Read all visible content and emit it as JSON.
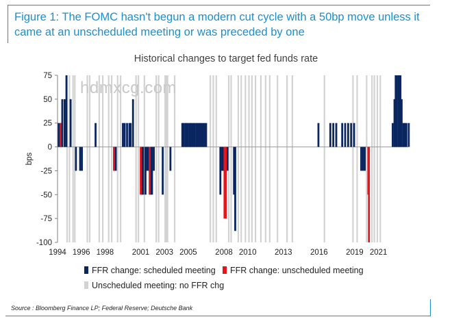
{
  "figure_title": "Figure 1: The FOMC hasn't begun a modern cut cycle with a 50bp move unless it came at an unscheduled meeting or was preceded by one",
  "watermark": "hdmxcg.com",
  "source": "Source : Bloomberg Finance LP; Federal Reserve; Deutsche Bank",
  "colors": {
    "scheduled": "#0a2660",
    "unscheduled": "#e8141b",
    "nochg": "#d3d3d3",
    "accent": "#1a8fd0"
  },
  "chart_data": {
    "type": "bar",
    "title": "Historical changes to target fed funds rate",
    "ylabel": "bps",
    "xlabel": "",
    "ylim": [
      -100,
      75
    ],
    "yticks": [
      75,
      50,
      25,
      0,
      -25,
      -50,
      -75,
      -100
    ],
    "xlim": [
      1994,
      2023.5
    ],
    "xticks": [
      1994,
      1996,
      1998,
      2001,
      2003,
      2005,
      2008,
      2010,
      2013,
      2016,
      2019,
      2021
    ],
    "legend": [
      {
        "key": "scheduled",
        "label": "FFR change: scheduled meeting"
      },
      {
        "key": "unscheduled",
        "label": "FFR change: unscheduled meeting"
      },
      {
        "key": "nochg",
        "label": "Unscheduled meeting: no FFR chg"
      }
    ],
    "series": [
      {
        "name": "FFR change: scheduled meeting",
        "key": "scheduled",
        "points": [
          [
            1994.1,
            25
          ],
          [
            1994.3,
            25
          ],
          [
            1994.4,
            50
          ],
          [
            1994.6,
            50
          ],
          [
            1994.75,
            75
          ],
          [
            1995.1,
            50
          ],
          [
            1995.55,
            -25
          ],
          [
            1995.9,
            -25
          ],
          [
            1996.05,
            -25
          ],
          [
            1997.2,
            25
          ],
          [
            1998.8,
            -25
          ],
          [
            1998.9,
            -25
          ],
          [
            1999.5,
            25
          ],
          [
            1999.65,
            25
          ],
          [
            1999.85,
            25
          ],
          [
            2000.05,
            25
          ],
          [
            2000.15,
            25
          ],
          [
            2000.35,
            50
          ],
          [
            2001.1,
            -50
          ],
          [
            2001.2,
            -50
          ],
          [
            2001.4,
            -50
          ],
          [
            2001.5,
            -25
          ],
          [
            2001.65,
            -25
          ],
          [
            2001.85,
            -50
          ],
          [
            2001.95,
            -50
          ],
          [
            2002.1,
            -25
          ],
          [
            2002.85,
            -50
          ],
          [
            2003.5,
            -25
          ],
          [
            2004.5,
            25
          ],
          [
            2004.6,
            25
          ],
          [
            2004.75,
            25
          ],
          [
            2004.85,
            25
          ],
          [
            2004.95,
            25
          ],
          [
            2005.1,
            25
          ],
          [
            2005.2,
            25
          ],
          [
            2005.3,
            25
          ],
          [
            2005.45,
            25
          ],
          [
            2005.55,
            25
          ],
          [
            2005.7,
            25
          ],
          [
            2005.8,
            25
          ],
          [
            2005.95,
            25
          ],
          [
            2006.05,
            25
          ],
          [
            2006.2,
            25
          ],
          [
            2006.35,
            25
          ],
          [
            2006.5,
            25
          ],
          [
            2007.7,
            -50
          ],
          [
            2007.85,
            -25
          ],
          [
            2007.95,
            -25
          ],
          [
            2008.3,
            -25
          ],
          [
            2008.85,
            -50
          ],
          [
            2008.95,
            -88
          ],
          [
            2015.95,
            25
          ],
          [
            2016.95,
            25
          ],
          [
            2017.2,
            25
          ],
          [
            2017.45,
            25
          ],
          [
            2017.95,
            25
          ],
          [
            2018.2,
            25
          ],
          [
            2018.45,
            25
          ],
          [
            2018.7,
            25
          ],
          [
            2018.95,
            25
          ],
          [
            2019.55,
            -25
          ],
          [
            2019.7,
            -25
          ],
          [
            2019.85,
            -25
          ],
          [
            2022.2,
            25
          ],
          [
            2022.35,
            50
          ],
          [
            2022.45,
            75
          ],
          [
            2022.55,
            75
          ],
          [
            2022.7,
            75
          ],
          [
            2022.85,
            75
          ],
          [
            2022.95,
            50
          ],
          [
            2023.1,
            25
          ],
          [
            2023.2,
            25
          ],
          [
            2023.35,
            25
          ],
          [
            2023.55,
            25
          ]
        ]
      },
      {
        "name": "FFR change: unscheduled meeting",
        "key": "unscheduled",
        "points": [
          [
            1994.25,
            25
          ],
          [
            1998.75,
            -25
          ],
          [
            2001.0,
            -50
          ],
          [
            2001.75,
            -50
          ],
          [
            2008.05,
            -75
          ],
          [
            2008.15,
            -75
          ],
          [
            2020.15,
            -50
          ],
          [
            2020.2,
            -100
          ]
        ]
      },
      {
        "name": "Unscheduled meeting: no FFR chg",
        "key": "nochg",
        "points": [
          [
            1994.8,
            1
          ],
          [
            1995.0,
            1
          ],
          [
            1995.3,
            1
          ],
          [
            1995.45,
            1
          ],
          [
            1996.5,
            1
          ],
          [
            1996.7,
            1
          ],
          [
            1997.5,
            1
          ],
          [
            1997.8,
            1
          ],
          [
            1998.3,
            1
          ],
          [
            1998.55,
            1
          ],
          [
            1999.05,
            1
          ],
          [
            1999.3,
            1
          ],
          [
            2000.6,
            1
          ],
          [
            2000.8,
            1
          ],
          [
            2001.3,
            1
          ],
          [
            2002.3,
            1
          ],
          [
            2002.5,
            1
          ],
          [
            2003.05,
            1
          ],
          [
            2003.1,
            1
          ],
          [
            2003.15,
            1
          ],
          [
            2003.2,
            1
          ],
          [
            2003.25,
            1
          ],
          [
            2003.85,
            1
          ],
          [
            2006.85,
            1
          ],
          [
            2007.1,
            1
          ],
          [
            2007.35,
            1
          ],
          [
            2008.4,
            1
          ],
          [
            2008.6,
            1
          ],
          [
            2009.2,
            1
          ],
          [
            2009.45,
            1
          ],
          [
            2009.8,
            1
          ],
          [
            2010.1,
            1
          ],
          [
            2010.35,
            1
          ],
          [
            2010.65,
            1
          ],
          [
            2011.1,
            1
          ],
          [
            2011.5,
            1
          ],
          [
            2011.85,
            1
          ],
          [
            2012.5,
            1
          ],
          [
            2013.3,
            1
          ],
          [
            2013.75,
            1
          ],
          [
            2016.45,
            1
          ],
          [
            2018.85,
            1
          ],
          [
            2019.2,
            1
          ],
          [
            2020.0,
            1
          ],
          [
            2020.45,
            1
          ],
          [
            2020.65,
            1
          ],
          [
            2020.9,
            1
          ],
          [
            2021.15,
            1
          ]
        ]
      }
    ]
  }
}
